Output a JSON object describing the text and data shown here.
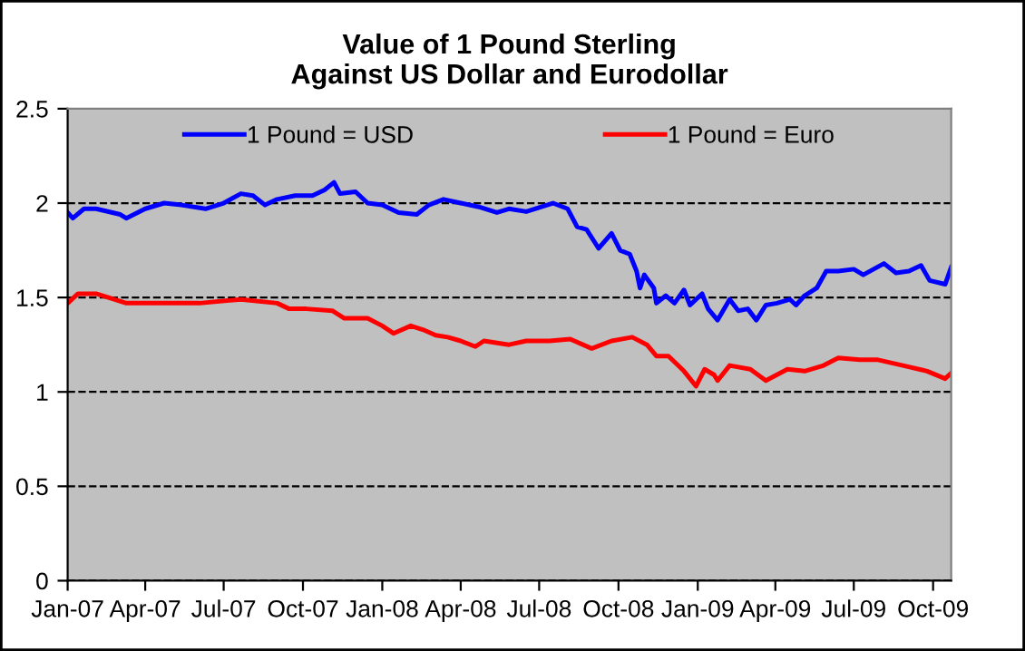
{
  "chart_data": {
    "type": "line",
    "title": "Value of 1 Pound Sterling\nAgainst US Dollar and Eurodollar",
    "xlim": [
      "2007-01-01",
      "2009-10-22"
    ],
    "xticks": [
      {
        "value": "2007-01-01",
        "label": "Jan-07"
      },
      {
        "value": "2007-04-01",
        "label": "Apr-07"
      },
      {
        "value": "2007-07-01",
        "label": "Jul-07"
      },
      {
        "value": "2007-10-01",
        "label": "Oct-07"
      },
      {
        "value": "2008-01-01",
        "label": "Jan-08"
      },
      {
        "value": "2008-04-01",
        "label": "Apr-08"
      },
      {
        "value": "2008-07-01",
        "label": "Jul-08"
      },
      {
        "value": "2008-10-01",
        "label": "Oct-08"
      },
      {
        "value": "2009-01-01",
        "label": "Jan-09"
      },
      {
        "value": "2009-04-01",
        "label": "Apr-09"
      },
      {
        "value": "2009-07-01",
        "label": "Jul-09"
      },
      {
        "value": "2009-10-01",
        "label": "Oct-09"
      }
    ],
    "ylim": [
      0,
      2.5
    ],
    "yticks": [
      0,
      0.5,
      1,
      1.5,
      2,
      2.5
    ],
    "grid": "y",
    "legend": "top",
    "marker": "none",
    "line_style": "solid",
    "series": [
      {
        "name": "1 Pound = USD",
        "color": "#0000ff",
        "x": [
          "2007-01-01",
          "2007-01-07",
          "2007-01-20",
          "2007-02-03",
          "2007-03-03",
          "2007-03-10",
          "2007-04-01",
          "2007-04-23",
          "2007-05-13",
          "2007-06-10",
          "2007-07-01",
          "2007-07-21",
          "2007-08-04",
          "2007-08-18",
          "2007-09-01",
          "2007-09-22",
          "2007-10-12",
          "2007-10-26",
          "2007-11-06",
          "2007-11-13",
          "2007-12-01",
          "2007-12-15",
          "2008-01-01",
          "2008-01-20",
          "2008-02-10",
          "2008-02-24",
          "2008-03-12",
          "2008-04-01",
          "2008-04-22",
          "2008-05-13",
          "2008-05-27",
          "2008-06-16",
          "2008-07-17",
          "2008-08-03",
          "2008-08-14",
          "2008-08-25",
          "2008-09-08",
          "2008-09-23",
          "2008-10-03",
          "2008-10-14",
          "2008-10-22",
          "2008-10-26",
          "2008-10-31",
          "2008-11-11",
          "2008-11-14",
          "2008-11-25",
          "2008-12-05",
          "2008-12-16",
          "2008-12-23",
          "2009-01-06",
          "2009-01-13",
          "2009-01-24",
          "2009-02-07",
          "2009-02-17",
          "2009-02-28",
          "2009-03-10",
          "2009-03-21",
          "2009-04-03",
          "2009-04-18",
          "2009-04-25",
          "2009-05-05",
          "2009-05-19",
          "2009-05-30",
          "2009-06-13",
          "2009-07-01",
          "2009-07-12",
          "2009-08-05",
          "2009-08-19",
          "2009-09-03",
          "2009-09-17",
          "2009-09-27",
          "2009-10-15",
          "2009-10-22"
        ],
        "values": [
          1.95,
          1.92,
          1.97,
          1.97,
          1.94,
          1.92,
          1.97,
          2.0,
          1.99,
          1.97,
          2.0,
          2.05,
          2.04,
          1.99,
          2.02,
          2.04,
          2.04,
          2.07,
          2.11,
          2.05,
          2.06,
          2.0,
          1.99,
          1.95,
          1.94,
          1.99,
          2.02,
          2.0,
          1.98,
          1.95,
          1.97,
          1.955,
          2.0,
          1.97,
          1.875,
          1.86,
          1.76,
          1.84,
          1.75,
          1.73,
          1.64,
          1.55,
          1.62,
          1.55,
          1.47,
          1.51,
          1.47,
          1.54,
          1.46,
          1.52,
          1.44,
          1.38,
          1.49,
          1.43,
          1.44,
          1.38,
          1.46,
          1.47,
          1.49,
          1.46,
          1.51,
          1.55,
          1.64,
          1.64,
          1.65,
          1.62,
          1.68,
          1.63,
          1.64,
          1.67,
          1.59,
          1.57,
          1.66
        ]
      },
      {
        "name": "1 Pound = Euro",
        "color": "#ff0000",
        "x": [
          "2007-01-01",
          "2007-01-13",
          "2007-02-03",
          "2007-02-24",
          "2007-03-10",
          "2007-04-23",
          "2007-06-03",
          "2007-07-21",
          "2007-09-01",
          "2007-09-15",
          "2007-10-05",
          "2007-11-04",
          "2007-11-18",
          "2007-12-15",
          "2008-01-01",
          "2008-01-14",
          "2008-02-03",
          "2008-02-17",
          "2008-03-03",
          "2008-03-17",
          "2008-04-01",
          "2008-04-18",
          "2008-04-28",
          "2008-05-27",
          "2008-06-16",
          "2008-07-13",
          "2008-08-06",
          "2008-08-31",
          "2008-09-23",
          "2008-10-17",
          "2008-11-03",
          "2008-11-14",
          "2008-11-28",
          "2008-12-16",
          "2008-12-30",
          "2009-01-09",
          "2009-01-20",
          "2009-01-24",
          "2009-02-07",
          "2009-03-03",
          "2009-03-21",
          "2009-04-15",
          "2009-05-05",
          "2009-05-27",
          "2009-06-13",
          "2009-07-08",
          "2009-07-29",
          "2009-08-27",
          "2009-09-24",
          "2009-10-15",
          "2009-10-22"
        ],
        "values": [
          1.47,
          1.52,
          1.52,
          1.49,
          1.47,
          1.47,
          1.47,
          1.49,
          1.47,
          1.44,
          1.44,
          1.43,
          1.39,
          1.39,
          1.35,
          1.31,
          1.35,
          1.33,
          1.3,
          1.29,
          1.27,
          1.24,
          1.27,
          1.25,
          1.27,
          1.27,
          1.28,
          1.23,
          1.27,
          1.29,
          1.25,
          1.19,
          1.19,
          1.11,
          1.03,
          1.12,
          1.09,
          1.06,
          1.14,
          1.12,
          1.06,
          1.12,
          1.11,
          1.14,
          1.18,
          1.17,
          1.17,
          1.14,
          1.11,
          1.07,
          1.1
        ]
      }
    ]
  }
}
